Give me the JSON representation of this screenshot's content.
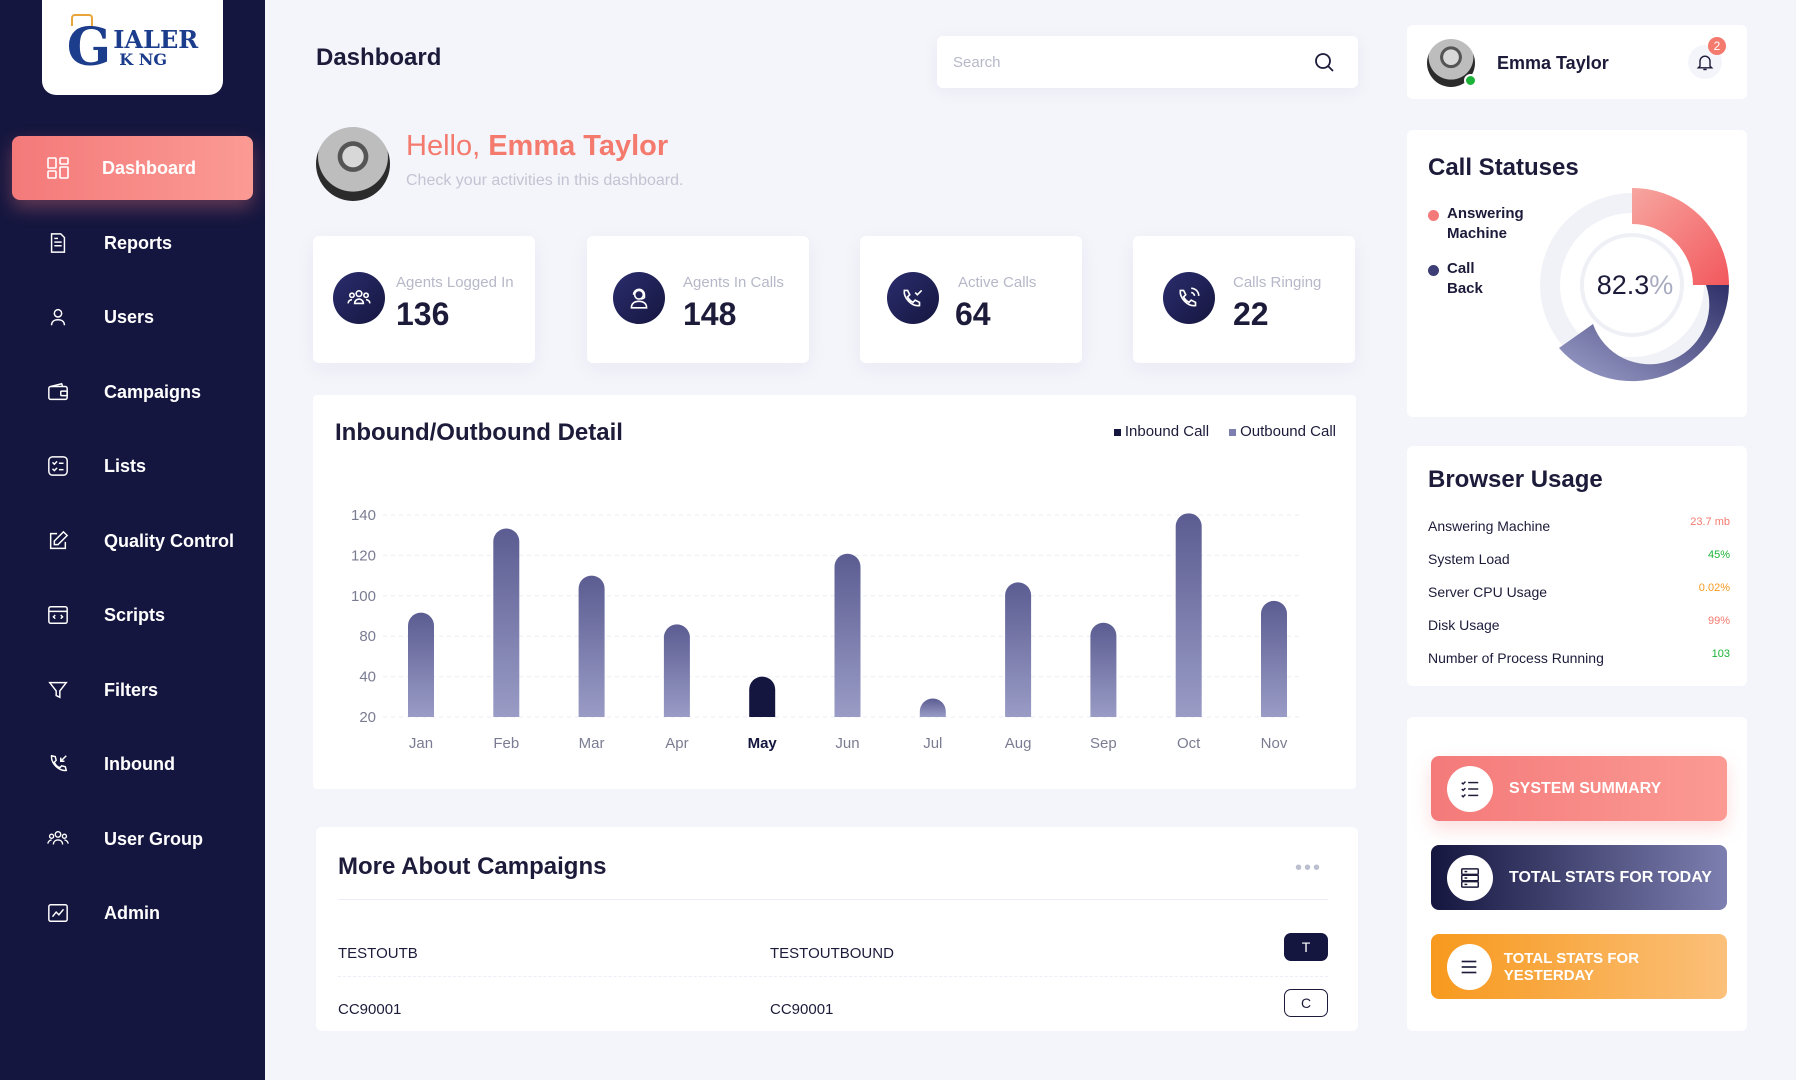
{
  "brand": {
    "word1": "IALER",
    "word2": "K NG",
    "g": "G"
  },
  "sidebar": {
    "items": [
      {
        "label": "Dashboard",
        "icon": "dashboard-grid-icon",
        "active": true
      },
      {
        "label": "Reports",
        "icon": "document-icon"
      },
      {
        "label": "Users",
        "icon": "user-icon"
      },
      {
        "label": "Campaigns",
        "icon": "wallet-icon"
      },
      {
        "label": "Lists",
        "icon": "list-icon"
      },
      {
        "label": "Quality Control",
        "icon": "edit-icon"
      },
      {
        "label": "Scripts",
        "icon": "code-window-icon"
      },
      {
        "label": "Filters",
        "icon": "filter-icon"
      },
      {
        "label": "Inbound",
        "icon": "incoming-call-icon"
      },
      {
        "label": "User Group",
        "icon": "user-group-icon"
      },
      {
        "label": "Admin",
        "icon": "chart-line-icon"
      }
    ]
  },
  "header": {
    "title": "Dashboard",
    "search_placeholder": "Search"
  },
  "hello": {
    "greeting": "Hello, ",
    "name": "Emma Taylor",
    "subtitle": "Check your activities in this dashboard."
  },
  "stats": [
    {
      "label": "Agents Logged In",
      "value": "136",
      "icon": "people-icon"
    },
    {
      "label": "Agents In Calls",
      "value": "148",
      "icon": "headset-agent-icon"
    },
    {
      "label": "Active Calls",
      "value": "64",
      "icon": "phone-check-icon"
    },
    {
      "label": "Calls Ringing",
      "value": "22",
      "icon": "phone-ringing-icon"
    }
  ],
  "chart_data": {
    "type": "bar",
    "title": "Inbound/Outbound Detail",
    "legend": [
      "Inbound Call",
      "Outbound Call"
    ],
    "legend_position": "top-right",
    "categories": [
      "Jan",
      "Feb",
      "Mar",
      "Apr",
      "May",
      "Jun",
      "Jul",
      "Aug",
      "Sep",
      "Oct",
      "Nov"
    ],
    "values": [
      82,
      132,
      104,
      75,
      44,
      117,
      31,
      100,
      76,
      141,
      89
    ],
    "highlight_category": "May",
    "yticks": [
      "140",
      "120",
      "100",
      "80",
      "40",
      "20"
    ],
    "colors": {
      "bar": "#5b5c91",
      "bar_light": "#9a9cc6",
      "highlight": "#15163f"
    },
    "grid": true
  },
  "campaigns": {
    "title": "More About Campaigns",
    "rows": [
      {
        "id": "TESTOUTB",
        "name": "TESTOUTBOUND",
        "badge": "T",
        "dark": true
      },
      {
        "id": "CC90001",
        "name": "CC90001",
        "badge": "C",
        "dark": false
      }
    ]
  },
  "user": {
    "name": "Emma Taylor",
    "notifications": "2"
  },
  "call_statuses": {
    "title": "Call Statuses",
    "legend": [
      {
        "label": "Answering Machine",
        "color": "#f47a7a"
      },
      {
        "label": "Call Back",
        "color": "#3d3e75"
      }
    ],
    "value": "82.3",
    "unit": "%"
  },
  "browser_usage": {
    "title": "Browser Usage",
    "rows": [
      {
        "label": "Answering Machine",
        "value": "23.7 mb",
        "color": "#f47a6e"
      },
      {
        "label": "System Load",
        "value": "45%",
        "color": "#1db338"
      },
      {
        "label": "Server CPU Usage",
        "value": "0.02%",
        "color": "#f7991d"
      },
      {
        "label": "Disk Usage",
        "value": "99%",
        "color": "#f47a6e"
      },
      {
        "label": "Number of Process Running",
        "value": "103",
        "color": "#1db338"
      }
    ]
  },
  "actions": [
    {
      "label": "SYSTEM SUMMARY",
      "icon": "checklist-icon"
    },
    {
      "label": "TOTAL STATS FOR TODAY",
      "icon": "server-icon"
    },
    {
      "label": "TOTAL STATS FOR YESTERDAY",
      "icon": "menu-lines-icon"
    }
  ]
}
